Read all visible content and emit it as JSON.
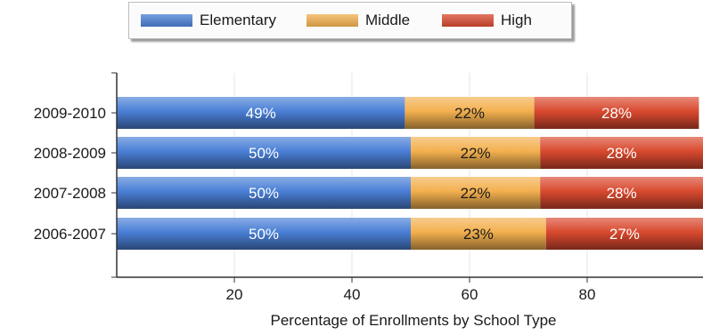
{
  "chart_data": {
    "type": "bar",
    "orientation": "horizontal",
    "stacked": true,
    "categories": [
      "2009-2010",
      "2008-2009",
      "2007-2008",
      "2006-2007"
    ],
    "series": [
      {
        "name": "Elementary",
        "values": [
          49,
          50,
          50,
          50
        ],
        "labels": [
          "49%",
          "50%",
          "50%",
          "50%"
        ],
        "color": "#4a7fd6"
      },
      {
        "name": "Middle",
        "values": [
          22,
          22,
          22,
          23
        ],
        "labels": [
          "22%",
          "22%",
          "22%",
          "23%"
        ],
        "color": "#f3b04f"
      },
      {
        "name": "High",
        "values": [
          28,
          28,
          28,
          27
        ],
        "labels": [
          "28%",
          "28%",
          "28%",
          "27%"
        ],
        "color": "#d9492f"
      }
    ],
    "xlabel": "Percentage of Enrollments by School Type",
    "ylabel": "",
    "xlim": [
      0,
      100
    ],
    "xticks": [
      20,
      40,
      60,
      80
    ],
    "grid": true,
    "legend_position": "top"
  }
}
